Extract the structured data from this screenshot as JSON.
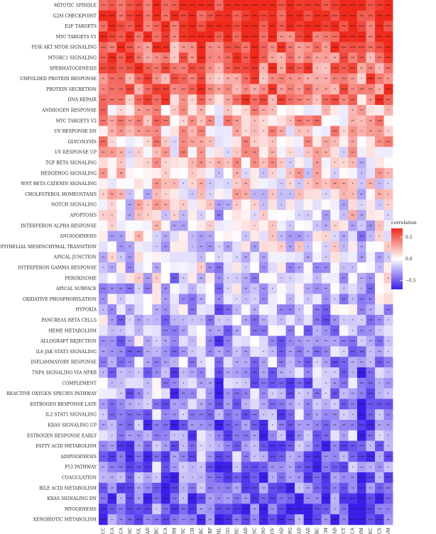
{
  "chart_data": {
    "type": "heatmap",
    "rows": [
      "MITOTIC SPINDLE",
      "G2M CHECKPOINT",
      "E2F TARGETS",
      "MYC TARGETS V1",
      "PI3K AKT MTOR SIGNALING",
      "MTORC1 SIGNALING",
      "SPERMATOGENESIS",
      "UNFOLDED PROTEIN RESPONSE",
      "PROTEIN SECRETION",
      "DNA REPAIR",
      "ANDROGEN RESPONSE",
      "MYC TARGETS V2",
      "UV RESPONSE DN",
      "GLYCOLYSIS",
      "UV RESPONSE UP",
      "TGF BETA SIGNALING",
      "HEDGEHOG SIGNALING",
      "WNT BETA CATENIN SIGNALING",
      "CHOLESTEROL HOMEOSTASIS",
      "NOTCH SIGNALING",
      "APOPTOSIS",
      "INTERFERON ALPHA RESPONSE",
      "ANGIOGENESIS",
      "EPITHELIAL MESENCHYMAL TRANSITION",
      "APICAL JUNCTION",
      "INTERFERON GAMMA RESPONSE",
      "PEROXISOME",
      "APICAL SURFACE",
      "OXIDATIVE PHOSPHORYLATION",
      "HYPOXIA",
      "PANCREAS BETA CELLS",
      "HEME METABOLISM",
      "ALLOGRAFT REJECTION",
      "IL6 JAK STAT3 SIGNALING",
      "INFLAMMATORY RESPONSE",
      "TNFA SIGNALING VIA NFKB",
      "COMPLEMENT",
      "REACTIVE OXYGEN SPECIES PATHWAY",
      "ESTROGEN RESPONSE LATE",
      "IL2 STAT5 SIGNALING",
      "KRAS SIGNALING UP",
      "ESTROGEN RESPONSE EARLY",
      "FATTY ACID METABOLISM",
      "ADIPOGENESIS",
      "P53 PATHWAY",
      "COAGULATION",
      "BILE ACID METABOLISM",
      "KRAS SIGNALING DN",
      "MYOGENESIS",
      "XENOBIOTIC METABOLISM"
    ],
    "columns": [
      "ACC",
      "BLCA",
      "BRCA",
      "CESC",
      "CHOL",
      "COAD",
      "DLBC",
      "ESCA",
      "GBM",
      "HNSC",
      "KICH",
      "KIRC",
      "KIRP",
      "LAML",
      "LGG",
      "LIHC",
      "LUAD",
      "LUSC",
      "MESO",
      "OV",
      "PAAD",
      "PCPG",
      "PRAD",
      "READ",
      "SARC",
      "SKCM",
      "STAD",
      "TGCT",
      "THCA",
      "THYM",
      "UCEC",
      "UCS",
      "UVM"
    ],
    "row_means": [
      0.7,
      0.68,
      0.66,
      0.62,
      0.52,
      0.5,
      0.48,
      0.46,
      0.44,
      0.42,
      0.2,
      0.22,
      0.18,
      0.16,
      0.12,
      0.1,
      0.06,
      0.04,
      0.02,
      0.0,
      -0.04,
      -0.06,
      -0.08,
      -0.1,
      -0.12,
      -0.14,
      -0.16,
      -0.18,
      -0.2,
      -0.22,
      -0.24,
      -0.26,
      -0.28,
      -0.3,
      -0.3,
      -0.32,
      -0.32,
      -0.34,
      -0.34,
      -0.36,
      -0.38,
      -0.38,
      -0.4,
      -0.4,
      -0.42,
      -0.44,
      -0.46,
      -0.48,
      -0.5,
      -0.52
    ],
    "column_offsets": [
      0.05,
      0.02,
      0.0,
      -0.02,
      0.08,
      -0.05,
      0.1,
      0.0,
      -0.08,
      0.04,
      -0.03,
      0.06,
      0.02,
      -0.1,
      0.0,
      0.05,
      0.03,
      0.01,
      -0.04,
      0.02,
      0.0,
      -0.06,
      0.04,
      -0.02,
      0.0,
      -0.05,
      0.01,
      -0.03,
      0.05,
      -0.12,
      -0.04,
      0.02,
      0.06
    ],
    "value_range": [
      -0.7,
      0.7
    ],
    "legend": {
      "title": "correlation",
      "ticks": [
        0.5,
        0.0,
        -0.5
      ],
      "tick_labels": [
        "0.5",
        "0.0",
        "−0.5"
      ],
      "placement": "right"
    },
    "colors": {
      "low": "#3a1ee8",
      "mid": "#ffffff",
      "high": "#ee2a1c"
    },
    "significance_marks": [
      "*",
      "**",
      "***",
      "****"
    ]
  }
}
